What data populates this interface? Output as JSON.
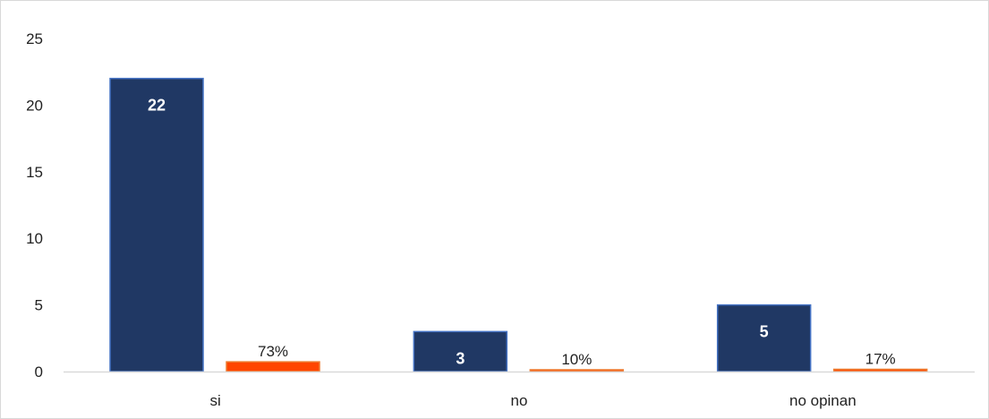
{
  "chart_data": {
    "type": "bar",
    "categories": [
      "si",
      "no",
      "no opinan"
    ],
    "series": [
      {
        "values": [
          22,
          3,
          5
        ],
        "labels": [
          "22",
          "3",
          "5"
        ],
        "color": "#203864",
        "border": "#4472c4"
      },
      {
        "values": [
          0.73,
          0.1,
          0.17
        ],
        "labels": [
          "73%",
          "10%",
          "17%"
        ],
        "color": "#ff4500",
        "border": "#ed7d31"
      }
    ],
    "yticks": [
      "0",
      "5",
      "10",
      "15",
      "20",
      "25"
    ],
    "ylim": [
      0,
      25
    ],
    "title": "",
    "xlabel": "",
    "ylabel": "",
    "grid": false,
    "legend": "none",
    "axis_color": "#d9d9d9"
  }
}
